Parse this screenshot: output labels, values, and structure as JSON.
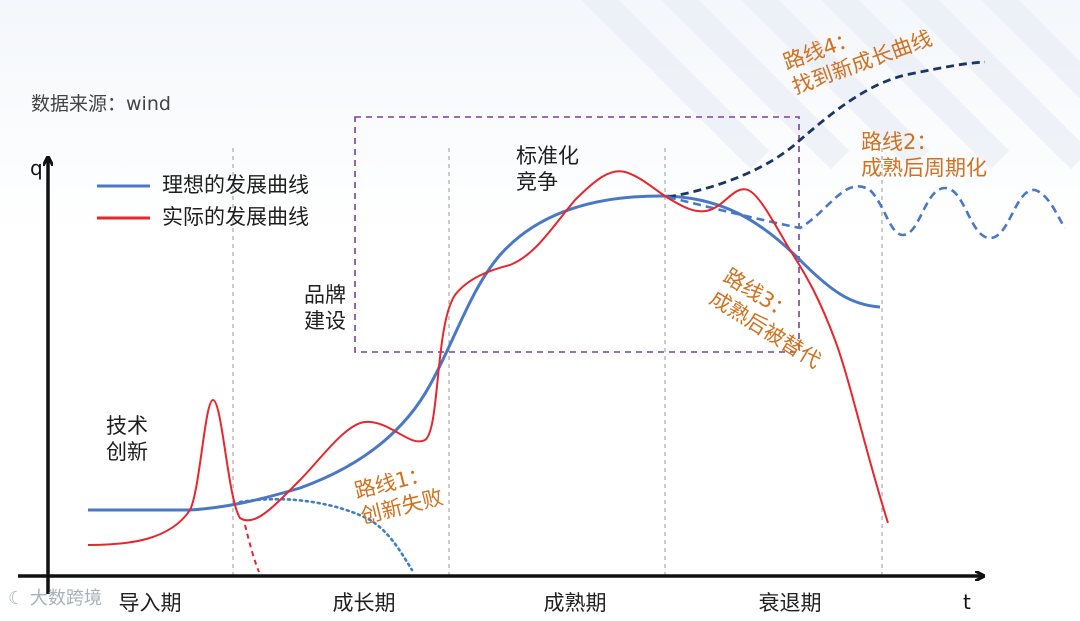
{
  "source": "数据来源：wind",
  "axes": {
    "y_label": "q",
    "x_label": "t"
  },
  "legend": [
    {
      "label": "理想的发展曲线",
      "color": "#4a78c4"
    },
    {
      "label": "实际的发展曲线",
      "color": "#e8262c"
    }
  ],
  "phases": [
    "导入期",
    "成长期",
    "成熟期",
    "衰退期"
  ],
  "annotations": {
    "tech": [
      "技术",
      "创新"
    ],
    "brand": [
      "品牌",
      "建设"
    ],
    "standard": [
      "标准化",
      "竞争"
    ]
  },
  "routes": {
    "route1": [
      "路线1：",
      "创新失败"
    ],
    "route2": [
      "路线2：",
      "成熟后周期化"
    ],
    "route3": [
      "路线3：",
      "成熟后被替代"
    ],
    "route4": [
      "路线4：",
      "找到新成长曲线"
    ]
  },
  "colors": {
    "ideal": "#4a78c4",
    "actual": "#e8262c",
    "route4": "#1d3466",
    "route_text": "#d0711f",
    "highlight_box": "#7b3fa0"
  },
  "watermark": "大数跨境"
}
